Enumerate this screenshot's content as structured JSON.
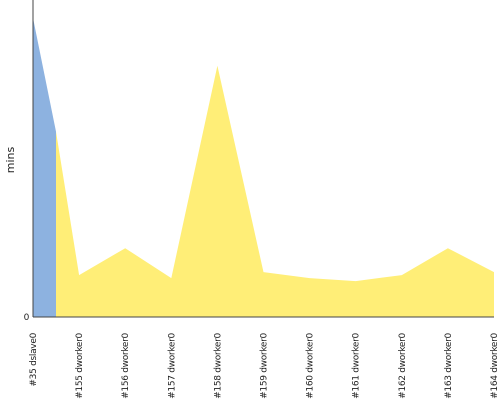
{
  "chart_data": {
    "type": "area",
    "ylabel": "mins",
    "xlabel": "",
    "y_tick_labels": [
      "0"
    ],
    "ylim": [
      0,
      100
    ],
    "grid": false,
    "categories": [
      "#35 dslave0",
      "#155 dworker0",
      "#156 dworker0",
      "#157 dworker0",
      "#158 dworker0",
      "#159 dworker0",
      "#160 dworker0",
      "#161 dworker0",
      "#162 dworker0",
      "#163 dworker0",
      "#164 dworker0"
    ],
    "series": [
      {
        "color": "#8db2e0",
        "x": [
          0,
          0.5
        ],
        "values": [
          100,
          62
        ]
      },
      {
        "color": "#ffee77",
        "x": [
          0.5,
          1,
          2,
          3,
          4,
          5,
          6,
          7,
          8,
          9,
          10
        ],
        "values": [
          62,
          14,
          23,
          13,
          84,
          15,
          13,
          12,
          14,
          23,
          15
        ]
      }
    ]
  }
}
